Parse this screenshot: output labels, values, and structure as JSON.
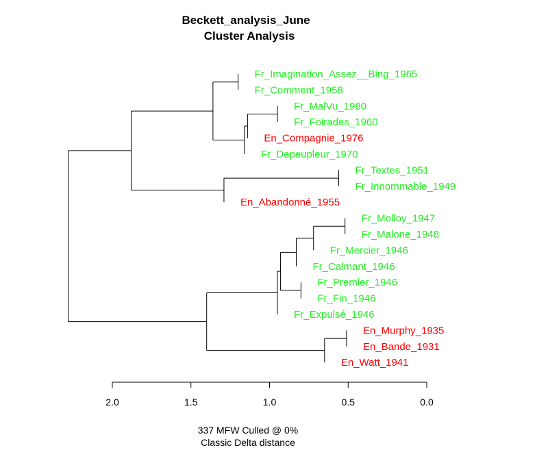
{
  "colors": {
    "french": "#22ee22",
    "english": "#ff0000"
  },
  "chart_data": {
    "type": "dendrogram",
    "title": "Beckett_analysis_June",
    "subtitle": "Cluster Analysis",
    "xlabel": "337 MFW  Culled @ 0%",
    "xlabel2": "Classic Delta distance",
    "xlim": [
      2.0,
      0.0
    ],
    "ticks": [
      "2.0",
      "1.5",
      "1.0",
      "0.5",
      "0.0"
    ],
    "tick_values": [
      2.0,
      1.5,
      1.0,
      0.5,
      0.0
    ],
    "leaves": [
      {
        "id": "L1",
        "label": "Fr_Imagination_Assez__Bing_1965",
        "lang": "french"
      },
      {
        "id": "L2",
        "label": "Fr_Comment_1958",
        "lang": "french"
      },
      {
        "id": "L3",
        "label": "Fr_MalVu_1980",
        "lang": "french"
      },
      {
        "id": "L4",
        "label": "Fr_Foirades_1960",
        "lang": "french"
      },
      {
        "id": "L5",
        "label": "En_Compagnie_1976",
        "lang": "english"
      },
      {
        "id": "L6",
        "label": "Fr_Depeupleur_1970",
        "lang": "french"
      },
      {
        "id": "L7",
        "label": "Fr_Textes_1951",
        "lang": "french"
      },
      {
        "id": "L8",
        "label": "Fr_Innommable_1949",
        "lang": "french"
      },
      {
        "id": "L9",
        "label": "En_Abandonné_1955",
        "lang": "english"
      },
      {
        "id": "L10",
        "label": "Fr_Molloy_1947",
        "lang": "french"
      },
      {
        "id": "L11",
        "label": "Fr_Malone_1948",
        "lang": "french"
      },
      {
        "id": "L12",
        "label": "Fr_Mercier_1946",
        "lang": "french"
      },
      {
        "id": "L13",
        "label": "Fr_Calmant_1946",
        "lang": "french"
      },
      {
        "id": "L14",
        "label": "Fr_Premier_1946",
        "lang": "french"
      },
      {
        "id": "L15",
        "label": "Fr_Fin_1946",
        "lang": "french"
      },
      {
        "id": "L16",
        "label": "Fr_Expulsé_1946",
        "lang": "french"
      },
      {
        "id": "L17",
        "label": "En_Murphy_1935",
        "lang": "english"
      },
      {
        "id": "L18",
        "label": "En_Bande_1931",
        "lang": "english"
      },
      {
        "id": "L19",
        "label": "En_Watt_1941",
        "lang": "english"
      }
    ],
    "merges": [
      {
        "id": "M1",
        "children": [
          "L1",
          "L2"
        ],
        "height": 1.2
      },
      {
        "id": "M2",
        "children": [
          "L3",
          "L4"
        ],
        "height": 0.95
      },
      {
        "id": "M3",
        "children": [
          "M2",
          "L5"
        ],
        "height": 1.14
      },
      {
        "id": "M4",
        "children": [
          "M3",
          "L6"
        ],
        "height": 1.16
      },
      {
        "id": "M5",
        "children": [
          "M1",
          "M4"
        ],
        "height": 1.36
      },
      {
        "id": "M6",
        "children": [
          "L7",
          "L8"
        ],
        "height": 0.56
      },
      {
        "id": "M7",
        "children": [
          "M6",
          "L9"
        ],
        "height": 1.29
      },
      {
        "id": "M8",
        "children": [
          "M5",
          "M7"
        ],
        "height": 1.88
      },
      {
        "id": "M9",
        "children": [
          "L10",
          "L11"
        ],
        "height": 0.52
      },
      {
        "id": "M10",
        "children": [
          "M9",
          "L12"
        ],
        "height": 0.72
      },
      {
        "id": "M11",
        "children": [
          "M10",
          "L13"
        ],
        "height": 0.83
      },
      {
        "id": "M12",
        "children": [
          "L14",
          "L15"
        ],
        "height": 0.8
      },
      {
        "id": "M13",
        "children": [
          "M11",
          "M12"
        ],
        "height": 0.93
      },
      {
        "id": "M14",
        "children": [
          "M13",
          "L16"
        ],
        "height": 0.95
      },
      {
        "id": "M15",
        "children": [
          "L17",
          "L18"
        ],
        "height": 0.51
      },
      {
        "id": "M16",
        "children": [
          "M15",
          "L19"
        ],
        "height": 0.65
      },
      {
        "id": "M17",
        "children": [
          "M14",
          "M16"
        ],
        "height": 1.4
      },
      {
        "id": "M18",
        "children": [
          "M8",
          "M17"
        ],
        "height": 2.28
      }
    ]
  }
}
